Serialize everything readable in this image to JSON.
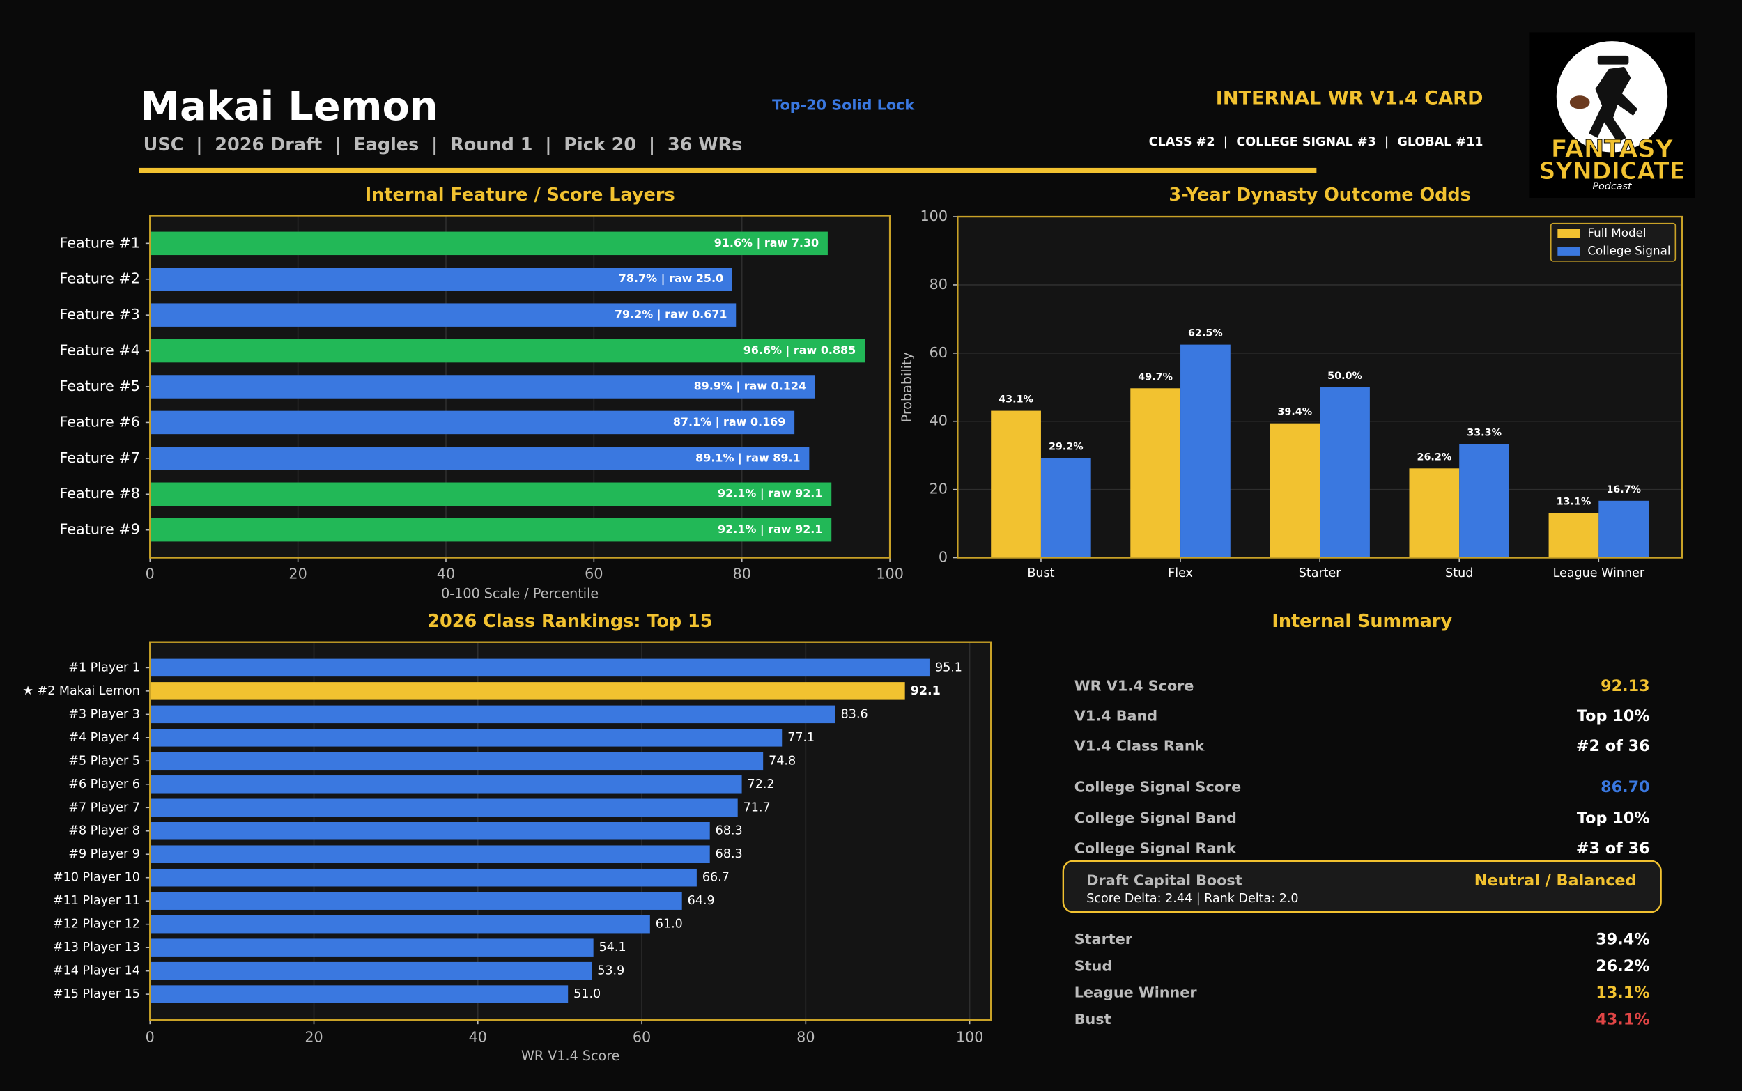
{
  "header": {
    "name": "Makai Lemon",
    "subtitle": "USC  |  2026 Draft  |  Eagles  |  Round 1  |  Pick 20  |  36 WRs",
    "tag": "Top-20 Solid Lock",
    "card_title": "INTERNAL WR V1.4 CARD",
    "ranks": "CLASS #2  |  COLLEGE SIGNAL #3  |  GLOBAL #11",
    "logo_line1": "FANTASY",
    "logo_line2": "SYNDICATE",
    "logo_line3": "Podcast"
  },
  "chart_data": [
    {
      "type": "barh",
      "title": "Internal Feature / Score Layers",
      "categories": [
        "Feature #1",
        "Feature #2",
        "Feature #3",
        "Feature #4",
        "Feature #5",
        "Feature #6",
        "Feature #7",
        "Feature #8",
        "Feature #9"
      ],
      "values": [
        91.6,
        78.7,
        79.2,
        96.6,
        89.9,
        87.1,
        89.1,
        92.1,
        92.1
      ],
      "value_labels": [
        "91.6% | raw 7.30",
        "78.7% | raw 25.0",
        "79.2% | raw 0.671",
        "96.6% | raw 0.885",
        "89.9% | raw 0.124",
        "87.1% | raw 0.169",
        "89.1% | raw 89.1",
        "92.1% | raw 92.1",
        "92.1% | raw 92.1"
      ],
      "colors": [
        "#22b857",
        "#3a78e0",
        "#3a78e0",
        "#22b857",
        "#3a78e0",
        "#3a78e0",
        "#3a78e0",
        "#22b857",
        "#22b857"
      ],
      "value_label_position": "inside",
      "xlabel": "0-100 Scale / Percentile",
      "xlim": [
        0,
        100
      ],
      "xticks": [
        0,
        20,
        40,
        60,
        80,
        100
      ],
      "grid": true
    },
    {
      "type": "bar",
      "title": "3-Year Dynasty Outcome Odds",
      "categories": [
        "Bust",
        "Flex",
        "Starter",
        "Stud",
        "League Winner"
      ],
      "series": [
        {
          "name": "Full Model",
          "color": "#f2c230",
          "values": [
            43.1,
            49.7,
            39.4,
            26.2,
            13.1
          ],
          "value_labels": [
            "43.1%",
            "49.7%",
            "39.4%",
            "26.2%",
            "13.1%"
          ]
        },
        {
          "name": "College Signal",
          "color": "#3a78e0",
          "values": [
            29.2,
            62.5,
            50.0,
            33.3,
            16.7
          ],
          "value_labels": [
            "29.2%",
            "62.5%",
            "50.0%",
            "33.3%",
            "16.7%"
          ]
        }
      ],
      "ylabel": "Probability",
      "ylim": [
        0,
        100
      ],
      "yticks": [
        0,
        20,
        40,
        60,
        80,
        100
      ],
      "grid": true,
      "legend": "upper right"
    },
    {
      "type": "barh",
      "title": "2026 Class Rankings: Top 15",
      "categories": [
        "#1 Player 1",
        "★ #2 Makai Lemon",
        "#3 Player 3",
        "#4 Player 4",
        "#5 Player 5",
        "#6 Player 6",
        "#7 Player 7",
        "#8 Player 8",
        "#9 Player 9",
        "#10 Player 10",
        "#11 Player 11",
        "#12 Player 12",
        "#13 Player 13",
        "#14 Player 14",
        "#15 Player 15"
      ],
      "values": [
        95.1,
        92.1,
        83.6,
        77.1,
        74.8,
        72.2,
        71.7,
        68.3,
        68.3,
        66.7,
        64.9,
        61.0,
        54.1,
        53.9,
        51.0
      ],
      "value_labels": [
        "95.1",
        "92.1",
        "83.6",
        "77.1",
        "74.8",
        "72.2",
        "71.7",
        "68.3",
        "68.3",
        "66.7",
        "64.9",
        "61.0",
        "54.1",
        "53.9",
        "51.0"
      ],
      "colors": [
        "#3a78e0",
        "#f2c230",
        "#3a78e0",
        "#3a78e0",
        "#3a78e0",
        "#3a78e0",
        "#3a78e0",
        "#3a78e0",
        "#3a78e0",
        "#3a78e0",
        "#3a78e0",
        "#3a78e0",
        "#3a78e0",
        "#3a78e0",
        "#3a78e0"
      ],
      "highlight": 1,
      "value_label_position": "outside",
      "xlabel": "WR V1.4 Score",
      "xlim": [
        0,
        102.6
      ],
      "xticks": [
        0,
        20,
        40,
        60,
        80,
        100
      ],
      "grid": true
    }
  ],
  "summary": {
    "title": "Internal Summary",
    "rows": [
      {
        "label": "WR V1.4 Score",
        "value": "92.13",
        "color": "#f2c230"
      },
      {
        "label": "V1.4 Band",
        "value": "Top 10%",
        "color": "#ffffff"
      },
      {
        "label": "V1.4 Class Rank",
        "value": "#2 of 36",
        "color": "#ffffff"
      },
      {
        "label": "College Signal Score",
        "value": "86.70",
        "color": "#3a78e0"
      },
      {
        "label": "College Signal Band",
        "value": "Top 10%",
        "color": "#ffffff"
      },
      {
        "label": "College Signal Rank",
        "value": "#3 of 36",
        "color": "#ffffff"
      }
    ],
    "boost": {
      "label": "Draft Capital Boost",
      "value": "Neutral / Balanced",
      "detail": "Score Delta: 2.44   |   Rank Delta: 2.0"
    },
    "outcomes": [
      {
        "label": "Starter",
        "value": "39.4%",
        "color": "#ffffff"
      },
      {
        "label": "Stud",
        "value": "26.2%",
        "color": "#ffffff"
      },
      {
        "label": "League Winner",
        "value": "13.1%",
        "color": "#f2c230"
      },
      {
        "label": "Bust",
        "value": "43.1%",
        "color": "#e04545"
      }
    ]
  }
}
